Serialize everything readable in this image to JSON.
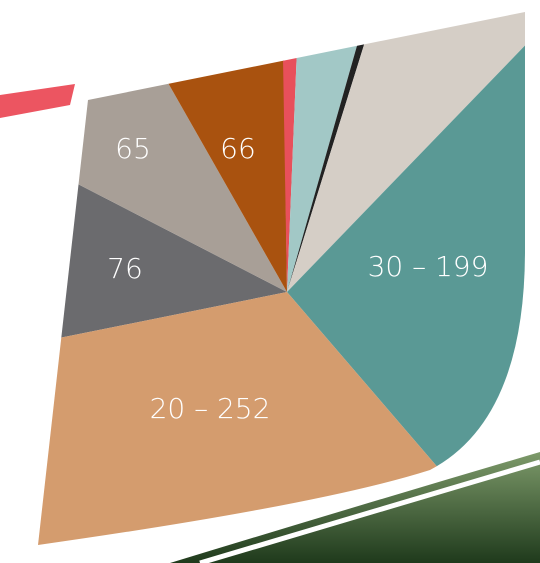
{
  "segments": [
    {
      "label": "65"
    },
    {
      "label": "66"
    },
    {
      "label": "76"
    },
    {
      "label": "30 – 199"
    },
    {
      "label": "20 – 252"
    }
  ]
}
